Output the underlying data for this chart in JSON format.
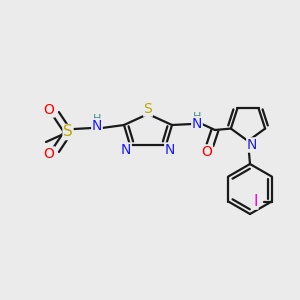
{
  "bg_color": "#ebebeb",
  "bond_color": "#1a1a1a",
  "bond_lw": 1.6,
  "atom_colors": {
    "N": "#1a1aff",
    "S": "#bbaa00",
    "O": "#ff0000",
    "H": "#4a9090",
    "I": "#ee00ee",
    "N_py": "#2222cc",
    "C": "#1a1a1a"
  }
}
